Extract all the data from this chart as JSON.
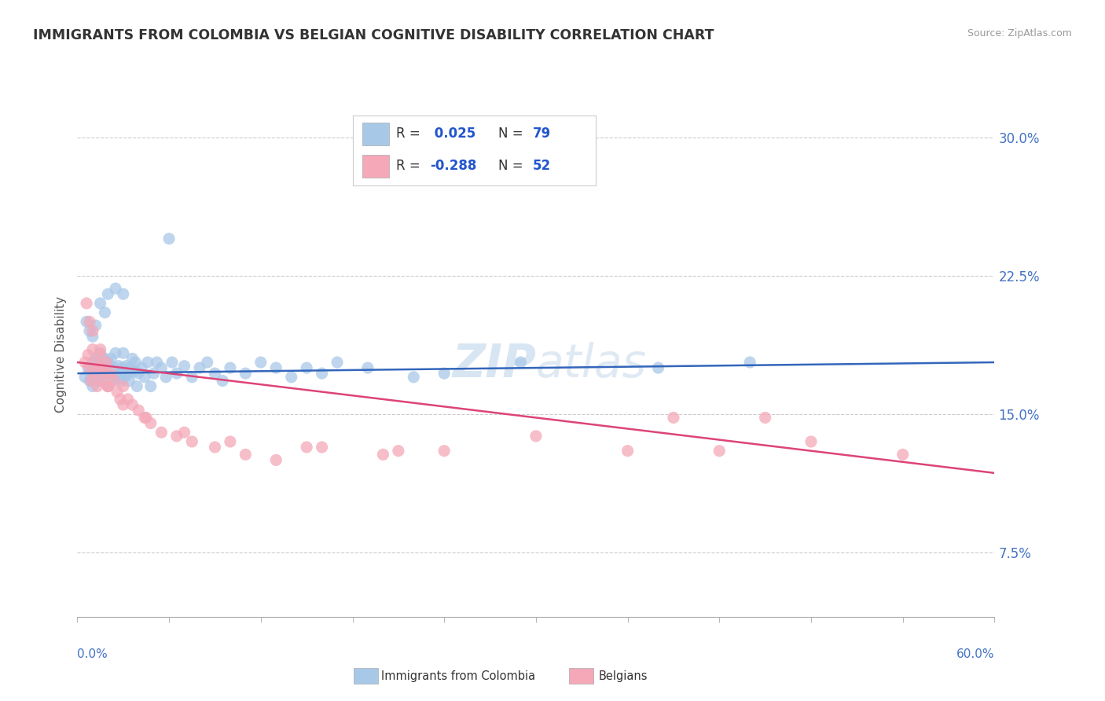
{
  "title": "IMMIGRANTS FROM COLOMBIA VS BELGIAN COGNITIVE DISABILITY CORRELATION CHART",
  "source": "Source: ZipAtlas.com",
  "ylabel": "Cognitive Disability",
  "xmin": 0.0,
  "xmax": 0.6,
  "ymin": 0.04,
  "ymax": 0.325,
  "yticks": [
    0.075,
    0.15,
    0.225,
    0.3
  ],
  "ytick_labels": [
    "7.5%",
    "15.0%",
    "22.5%",
    "30.0%"
  ],
  "blue_color": "#a8c8e8",
  "pink_color": "#f4a8b8",
  "blue_line_color": "#3366bb",
  "pink_line_color": "#dd4477",
  "watermark_zip": "ZIP",
  "watermark_atlas": "atlas",
  "blue_r": 0.025,
  "blue_n": 79,
  "pink_r": -0.288,
  "pink_n": 52,
  "blue_scatter_x": [
    0.005,
    0.007,
    0.008,
    0.009,
    0.01,
    0.01,
    0.011,
    0.012,
    0.013,
    0.014,
    0.015,
    0.015,
    0.016,
    0.017,
    0.018,
    0.019,
    0.02,
    0.02,
    0.021,
    0.022,
    0.023,
    0.024,
    0.025,
    0.026,
    0.027,
    0.028,
    0.029,
    0.03,
    0.03,
    0.031,
    0.032,
    0.033,
    0.034,
    0.035,
    0.036,
    0.037,
    0.038,
    0.039,
    0.04,
    0.042,
    0.044,
    0.046,
    0.048,
    0.05,
    0.052,
    0.055,
    0.058,
    0.062,
    0.065,
    0.07,
    0.075,
    0.08,
    0.085,
    0.09,
    0.095,
    0.1,
    0.11,
    0.12,
    0.13,
    0.14,
    0.15,
    0.16,
    0.17,
    0.19,
    0.22,
    0.24,
    0.006,
    0.008,
    0.01,
    0.012,
    0.015,
    0.018,
    0.02,
    0.025,
    0.03,
    0.06,
    0.29,
    0.38,
    0.44
  ],
  "blue_scatter_y": [
    0.17,
    0.175,
    0.168,
    0.172,
    0.178,
    0.165,
    0.175,
    0.18,
    0.172,
    0.168,
    0.176,
    0.183,
    0.17,
    0.175,
    0.18,
    0.173,
    0.178,
    0.165,
    0.172,
    0.18,
    0.168,
    0.175,
    0.183,
    0.17,
    0.176,
    0.172,
    0.168,
    0.175,
    0.183,
    0.17,
    0.176,
    0.172,
    0.168,
    0.175,
    0.18,
    0.173,
    0.178,
    0.165,
    0.172,
    0.175,
    0.17,
    0.178,
    0.165,
    0.172,
    0.178,
    0.175,
    0.17,
    0.178,
    0.172,
    0.176,
    0.17,
    0.175,
    0.178,
    0.172,
    0.168,
    0.175,
    0.172,
    0.178,
    0.175,
    0.17,
    0.175,
    0.172,
    0.178,
    0.175,
    0.17,
    0.172,
    0.2,
    0.195,
    0.192,
    0.198,
    0.21,
    0.205,
    0.215,
    0.218,
    0.215,
    0.245,
    0.178,
    0.175,
    0.178
  ],
  "pink_scatter_x": [
    0.005,
    0.007,
    0.008,
    0.009,
    0.01,
    0.011,
    0.012,
    0.013,
    0.014,
    0.015,
    0.016,
    0.017,
    0.018,
    0.019,
    0.02,
    0.022,
    0.024,
    0.026,
    0.028,
    0.03,
    0.033,
    0.036,
    0.04,
    0.044,
    0.048,
    0.055,
    0.065,
    0.075,
    0.09,
    0.11,
    0.13,
    0.16,
    0.2,
    0.24,
    0.3,
    0.36,
    0.42,
    0.48,
    0.54,
    0.006,
    0.008,
    0.01,
    0.015,
    0.02,
    0.03,
    0.045,
    0.07,
    0.1,
    0.15,
    0.21,
    0.39,
    0.45
  ],
  "pink_scatter_y": [
    0.178,
    0.182,
    0.175,
    0.168,
    0.185,
    0.172,
    0.178,
    0.165,
    0.175,
    0.182,
    0.168,
    0.175,
    0.172,
    0.178,
    0.165,
    0.172,
    0.168,
    0.162,
    0.158,
    0.165,
    0.158,
    0.155,
    0.152,
    0.148,
    0.145,
    0.14,
    0.138,
    0.135,
    0.132,
    0.128,
    0.125,
    0.132,
    0.128,
    0.13,
    0.138,
    0.13,
    0.13,
    0.135,
    0.128,
    0.21,
    0.2,
    0.195,
    0.185,
    0.165,
    0.155,
    0.148,
    0.14,
    0.135,
    0.132,
    0.13,
    0.148,
    0.148
  ]
}
